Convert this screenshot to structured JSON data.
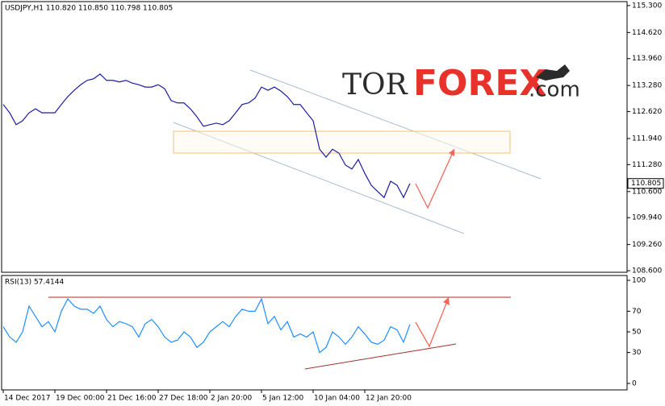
{
  "logo": [
    "TOR",
    "FOREX",
    ".com"
  ],
  "chart_data": [
    {
      "type": "line",
      "title": "USDJPY,H1 110.820 110.850 110.798 110.805",
      "color": "#1c1ca8",
      "categories": [
        "14 Dec 2017",
        null,
        null,
        null,
        null,
        null,
        null,
        null,
        "19 Dec 00:00",
        null,
        null,
        null,
        null,
        null,
        null,
        null,
        "21 Dec 16:00",
        null,
        null,
        null,
        null,
        null,
        null,
        null,
        "27 Dec 18:00",
        null,
        null,
        null,
        null,
        null,
        null,
        null,
        "2 Jan 20:00",
        null,
        null,
        null,
        null,
        null,
        null,
        null,
        "5 Jan 12:00",
        null,
        null,
        null,
        null,
        null,
        null,
        null,
        "10 Jan 04:00",
        null,
        null,
        null,
        null,
        null,
        null,
        null,
        "12 Jan 20:00",
        null,
        null,
        null,
        null,
        null,
        null,
        null
      ],
      "values": [
        112.8,
        112.59,
        112.29,
        112.39,
        112.59,
        112.69,
        112.59,
        112.59,
        112.59,
        112.8,
        113.0,
        113.16,
        113.3,
        113.41,
        113.45,
        113.57,
        113.41,
        113.41,
        113.37,
        113.41,
        113.34,
        113.3,
        113.24,
        113.24,
        113.3,
        113.2,
        112.9,
        112.84,
        112.84,
        112.69,
        112.49,
        112.25,
        112.29,
        112.33,
        112.29,
        112.39,
        112.59,
        112.8,
        112.84,
        112.96,
        113.24,
        113.16,
        113.24,
        113.14,
        113.0,
        112.8,
        112.8,
        112.59,
        112.39,
        111.67,
        111.47,
        111.67,
        111.57,
        111.27,
        111.17,
        111.41,
        111.06,
        110.76,
        110.6,
        110.45,
        110.86,
        110.76,
        110.45,
        110.805
      ],
      "ylim": [
        108.56,
        115.4
      ],
      "yticks": [
        {
          "value": 115.3,
          "label": "115.300"
        },
        {
          "value": 114.62,
          "label": "114.620"
        },
        {
          "value": 113.96,
          "label": "113.960"
        },
        {
          "value": 113.28,
          "label": "113.280"
        },
        {
          "value": 112.62,
          "label": "112.620"
        },
        {
          "value": 111.94,
          "label": "111.940"
        },
        {
          "value": 111.28,
          "label": "111.280"
        },
        {
          "value": 110.6,
          "label": "110.600"
        },
        {
          "value": 109.94,
          "label": "109.940"
        },
        {
          "value": 109.26,
          "label": "109.260"
        },
        {
          "value": 108.6,
          "label": "108.600"
        }
      ]
    },
    {
      "type": "line",
      "title": "RSI(13) 57.4144",
      "color": "#1e8fff",
      "values": [
        55,
        45,
        40,
        50,
        75,
        65,
        55,
        60,
        50,
        70,
        82,
        75,
        72,
        72,
        68,
        75,
        62,
        55,
        60,
        58,
        55,
        45,
        58,
        62,
        55,
        45,
        40,
        42,
        50,
        45,
        35,
        40,
        50,
        55,
        60,
        55,
        65,
        72,
        70,
        70,
        82,
        58,
        65,
        52,
        60,
        45,
        48,
        45,
        50,
        30,
        35,
        50,
        45,
        38,
        45,
        55,
        48,
        40,
        38,
        42,
        55,
        52,
        40,
        57.4144
      ],
      "ylim": [
        -6.25,
        104.7
      ],
      "yticks": [
        0,
        30,
        50,
        70,
        100
      ]
    }
  ]
}
